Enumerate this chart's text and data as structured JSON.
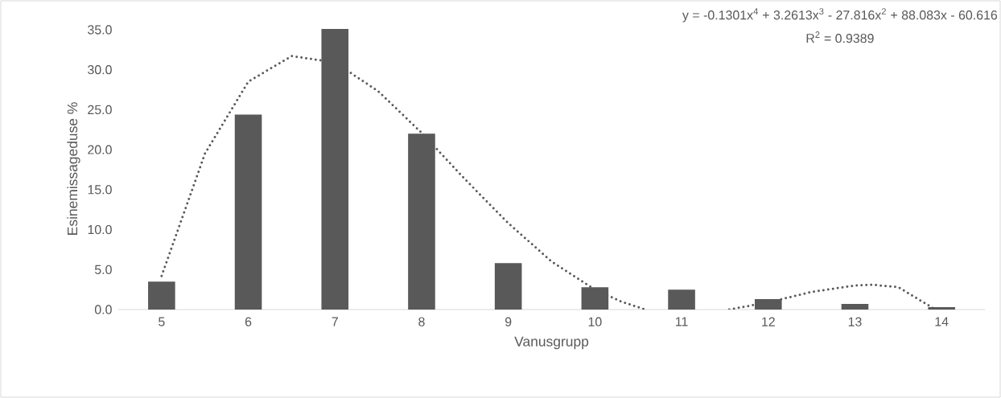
{
  "chart_data": {
    "type": "bar",
    "xlabel": "Vanusgrupp",
    "ylabel": "Esinemissageduse %",
    "x": [
      5,
      6,
      7,
      8,
      9,
      10,
      11,
      12,
      13,
      14
    ],
    "xlim": [
      4.5,
      14.5
    ],
    "xticks": [
      5,
      6,
      7,
      8,
      9,
      10,
      11,
      12,
      13,
      14
    ],
    "ylim": [
      0,
      35.2
    ],
    "yticks": [
      {
        "value": 0,
        "label": "0.0"
      },
      {
        "value": 5,
        "label": "5.0"
      },
      {
        "value": 10,
        "label": "10.0"
      },
      {
        "value": 15,
        "label": "15.0"
      },
      {
        "value": 20,
        "label": "20.0"
      },
      {
        "value": 25,
        "label": "25.0"
      },
      {
        "value": 30,
        "label": "30.0"
      },
      {
        "value": 35,
        "label": "35.0"
      }
    ],
    "series": [
      {
        "color": "#595959",
        "values": [
          3.5,
          24.4,
          35.1,
          22.0,
          5.8,
          2.8,
          2.5,
          1.3,
          0.7,
          0.3
        ]
      },
      {
        "type": "line",
        "color": "#595959",
        "line_style": "dotted",
        "x": [
          5,
          5.5,
          6,
          6.5,
          7,
          7.5,
          8,
          8.5,
          9,
          9.5,
          10,
          10.3,
          10.58,
          11,
          11.55,
          12,
          12.5,
          13,
          13.2,
          13.5,
          13.93
        ],
        "values": [
          4.2,
          19.5,
          28.5,
          31.7,
          30.9,
          27.3,
          22.1,
          16.3,
          10.8,
          6.0,
          2.5,
          1.0,
          0,
          null,
          0,
          0.9,
          2.2,
          3.0,
          3.1,
          2.8,
          0
        ]
      }
    ],
    "annotations": [
      "y = -0.1301x$^{4}$ + 3.2613x$^{3}$ - 27.816x$^{2}$ + 88.083x - 60.616",
      "R$^{2}$ = 0.9389"
    ]
  }
}
